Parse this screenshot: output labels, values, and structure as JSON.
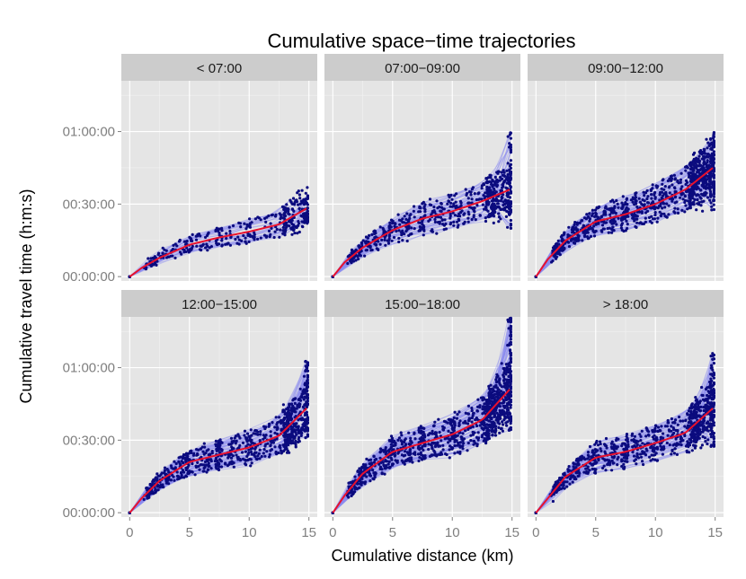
{
  "chart_data": {
    "type": "scatter",
    "title": "Cumulative space−time trajectories",
    "xlabel": "Cumulative distance (km)",
    "ylabel": "Cumulative travel time (h:m:s)",
    "xlim": [
      -0.7,
      15.7
    ],
    "ylim": [
      -0.03,
      1.35
    ],
    "x_ticks": [
      0,
      5,
      10,
      15
    ],
    "x_tick_labels": [
      "0",
      "5",
      "10",
      "15"
    ],
    "y_ticks": [
      0,
      0.5,
      1.0
    ],
    "y_tick_labels": [
      "00:00:00",
      "00:30:00",
      "01:00:00"
    ],
    "y_units": "hours",
    "grid": true,
    "legend": "none",
    "colors": {
      "points": "#0b0b7e",
      "trajectories": "#8c8cf0",
      "smooth": "#e8112d",
      "panel_bg": "#e5e5e5",
      "strip_bg": "#cccccc",
      "grid": "#ffffff"
    },
    "facets": [
      {
        "label": "< 07:00",
        "smooth": [
          [
            0,
            0
          ],
          [
            1,
            0.06
          ],
          [
            2.5,
            0.13
          ],
          [
            5,
            0.22
          ],
          [
            7.5,
            0.27
          ],
          [
            10,
            0.31
          ],
          [
            12.5,
            0.36
          ],
          [
            14.8,
            0.47
          ]
        ],
        "end_range": [
          0.37,
          0.56
        ],
        "trajectories": 35
      },
      {
        "label": "07:00−09:00",
        "smooth": [
          [
            0,
            0
          ],
          [
            1,
            0.1
          ],
          [
            2.5,
            0.2
          ],
          [
            5,
            0.32
          ],
          [
            7.5,
            0.4
          ],
          [
            10,
            0.45
          ],
          [
            12.5,
            0.52
          ],
          [
            14.8,
            0.6
          ]
        ],
        "end_range": [
          0.33,
          1.0
        ],
        "trajectories": 60
      },
      {
        "label": "09:00−12:00",
        "smooth": [
          [
            0,
            0
          ],
          [
            1,
            0.12
          ],
          [
            2.5,
            0.25
          ],
          [
            5,
            0.38
          ],
          [
            7.5,
            0.43
          ],
          [
            10,
            0.5
          ],
          [
            12.5,
            0.6
          ],
          [
            14.8,
            0.75
          ]
        ],
        "end_range": [
          0.45,
          1.0
        ],
        "trajectories": 90
      },
      {
        "label": "12:00−15:00",
        "smooth": [
          [
            0,
            0
          ],
          [
            1,
            0.1
          ],
          [
            2.5,
            0.22
          ],
          [
            5,
            0.35
          ],
          [
            7.5,
            0.4
          ],
          [
            10,
            0.45
          ],
          [
            12.5,
            0.53
          ],
          [
            14.8,
            0.72
          ]
        ],
        "end_range": [
          0.5,
          1.05
        ],
        "trajectories": 80
      },
      {
        "label": "15:00−18:00",
        "smooth": [
          [
            0,
            0
          ],
          [
            1,
            0.12
          ],
          [
            2.5,
            0.27
          ],
          [
            5,
            0.42
          ],
          [
            7.5,
            0.48
          ],
          [
            10,
            0.54
          ],
          [
            12.5,
            0.64
          ],
          [
            14.8,
            0.85
          ]
        ],
        "end_range": [
          0.55,
          1.35
        ],
        "trajectories": 100
      },
      {
        "label": "> 18:00",
        "smooth": [
          [
            0,
            0
          ],
          [
            1,
            0.1
          ],
          [
            2.5,
            0.25
          ],
          [
            5,
            0.38
          ],
          [
            7.5,
            0.42
          ],
          [
            10,
            0.48
          ],
          [
            12.5,
            0.55
          ],
          [
            14.8,
            0.72
          ]
        ],
        "end_range": [
          0.45,
          1.1
        ],
        "trajectories": 80
      }
    ]
  }
}
